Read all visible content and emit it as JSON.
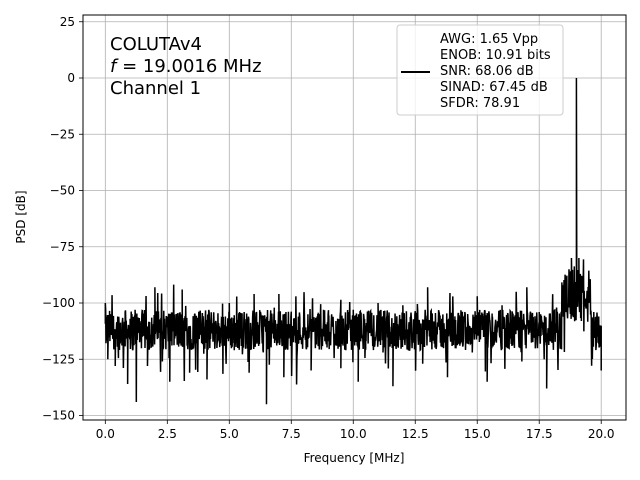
{
  "chart_data": {
    "type": "line",
    "xlabel": "Frequency [MHz]",
    "ylabel": "PSD [dB]",
    "xlim": [
      -0.9,
      21.0
    ],
    "ylim": [
      -152,
      28
    ],
    "xticks": [
      0.0,
      2.5,
      5.0,
      7.5,
      10.0,
      12.5,
      15.0,
      17.5,
      20.0
    ],
    "xtick_labels": [
      "0.0",
      "2.5",
      "5.0",
      "7.5",
      "10.0",
      "12.5",
      "15.0",
      "17.5",
      "20.0"
    ],
    "yticks": [
      25,
      0,
      -25,
      -50,
      -75,
      -100,
      -125,
      -150
    ],
    "ytick_labels": [
      "25",
      "0",
      "−25",
      "−50",
      "−75",
      "−100",
      "−125",
      "−150"
    ],
    "grid": true,
    "legend_position": "top-right",
    "annotations": [
      {
        "id": "device",
        "text": "COLUTAv4"
      },
      {
        "id": "freq",
        "symbol": "f",
        "text": " = 19.0016 MHz"
      },
      {
        "id": "channel",
        "text": "Channel 1"
      }
    ],
    "series": [
      {
        "color": "#000000",
        "legend_lines": [
          "AWG: 1.65 Vpp",
          "ENOB: 10.91 bits",
          "SNR: 68.06 dB",
          "SINAD: 67.45 dB",
          "SFDR: 78.91"
        ],
        "noise_floor_db": -112,
        "x_range": [
          0.0,
          20.0
        ],
        "points": [
          [
            0.0,
            -100
          ],
          [
            0.05,
            -108
          ],
          [
            0.1,
            -125
          ],
          [
            0.2,
            -105
          ],
          [
            0.3,
            -112
          ],
          [
            0.4,
            -128
          ],
          [
            0.5,
            -106
          ],
          [
            0.6,
            -118
          ],
          [
            0.8,
            -104
          ],
          [
            0.9,
            -136
          ],
          [
            1.0,
            -107
          ],
          [
            1.1,
            -121
          ],
          [
            1.2,
            -103
          ],
          [
            1.25,
            -144
          ],
          [
            1.3,
            -110
          ],
          [
            1.5,
            -115
          ],
          [
            1.7,
            -128
          ],
          [
            1.9,
            -111
          ],
          [
            2.0,
            -93
          ],
          [
            2.1,
            -114
          ],
          [
            2.3,
            -126
          ],
          [
            2.5,
            -106
          ],
          [
            2.6,
            -135
          ],
          [
            2.8,
            -112
          ],
          [
            3.0,
            -118
          ],
          [
            3.1,
            -94
          ],
          [
            3.2,
            -110
          ],
          [
            3.4,
            -131
          ],
          [
            3.7,
            -107
          ],
          [
            4.0,
            -114
          ],
          [
            4.1,
            -134
          ],
          [
            4.3,
            -109
          ],
          [
            4.5,
            -120
          ],
          [
            4.8,
            -112
          ],
          [
            5.0,
            -100
          ],
          [
            5.2,
            -121
          ],
          [
            5.5,
            -108
          ],
          [
            5.8,
            -131
          ],
          [
            6.0,
            -96
          ],
          [
            6.2,
            -113
          ],
          [
            6.5,
            -145
          ],
          [
            6.6,
            -108
          ],
          [
            6.8,
            -115
          ],
          [
            7.0,
            -96
          ],
          [
            7.2,
            -133
          ],
          [
            7.5,
            -110
          ],
          [
            7.8,
            -118
          ],
          [
            8.0,
            -107
          ],
          [
            8.3,
            -130
          ],
          [
            8.5,
            -111
          ],
          [
            8.8,
            -103
          ],
          [
            9.0,
            -117
          ],
          [
            9.3,
            -108
          ],
          [
            9.5,
            -129
          ],
          [
            9.8,
            -112
          ],
          [
            10.0,
            -103
          ],
          [
            10.2,
            -135
          ],
          [
            10.5,
            -110
          ],
          [
            10.8,
            -116
          ],
          [
            11.0,
            -100
          ],
          [
            11.2,
            -122
          ],
          [
            11.4,
            -108
          ],
          [
            11.6,
            -137
          ],
          [
            11.8,
            -110
          ],
          [
            12.0,
            -101
          ],
          [
            12.2,
            -118
          ],
          [
            12.5,
            -109
          ],
          [
            12.8,
            -127
          ],
          [
            13.0,
            -93
          ],
          [
            13.2,
            -114
          ],
          [
            13.5,
            -106
          ],
          [
            13.8,
            -133
          ],
          [
            14.0,
            -110
          ],
          [
            14.3,
            -119
          ],
          [
            14.5,
            -104
          ],
          [
            14.8,
            -122
          ],
          [
            15.0,
            -97
          ],
          [
            15.2,
            -112
          ],
          [
            15.4,
            -135
          ],
          [
            15.6,
            -108
          ],
          [
            15.8,
            -113
          ],
          [
            16.0,
            -101
          ],
          [
            16.2,
            -119
          ],
          [
            16.5,
            -110
          ],
          [
            16.8,
            -126
          ],
          [
            17.0,
            -93
          ],
          [
            17.2,
            -114
          ],
          [
            17.5,
            -104
          ],
          [
            17.8,
            -138
          ],
          [
            18.0,
            -111
          ],
          [
            18.2,
            -102
          ],
          [
            18.4,
            -118
          ],
          [
            18.6,
            -95
          ],
          [
            18.8,
            -80
          ],
          [
            18.9,
            -105
          ],
          [
            19.0,
            0
          ],
          [
            19.1,
            -80
          ],
          [
            19.2,
            -108
          ],
          [
            19.4,
            -98
          ],
          [
            19.6,
            -115
          ],
          [
            19.8,
            -106
          ],
          [
            20.0,
            -130
          ]
        ]
      }
    ]
  }
}
